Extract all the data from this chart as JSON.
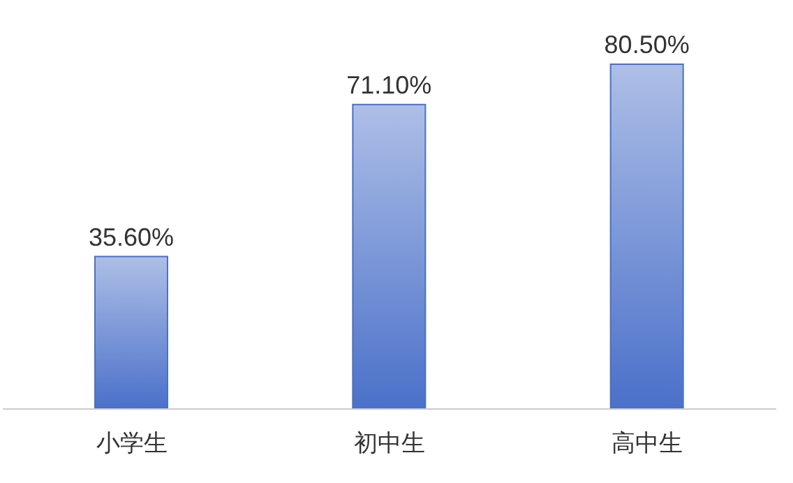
{
  "chart_data": {
    "type": "bar",
    "categories": [
      "小学生",
      "初中生",
      "高中生"
    ],
    "values": [
      35.6,
      71.1,
      80.5
    ],
    "value_labels": [
      "35.60%",
      "71.10%",
      "80.50%"
    ],
    "color": "#4a70c9"
  }
}
